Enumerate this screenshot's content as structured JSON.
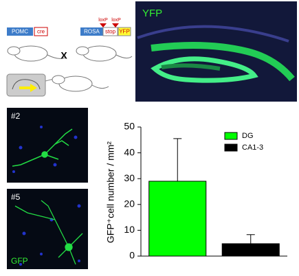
{
  "chart_data": {
    "type": "bar",
    "ylabel": "GFP⁺cell number / mm²",
    "series": [
      {
        "name": "DG",
        "color": "#00ff00",
        "values": [
          29
        ],
        "errors": [
          16.5
        ]
      },
      {
        "name": "CA1-3",
        "color": "#000000",
        "values": [
          4.8
        ],
        "errors": [
          3.5
        ]
      }
    ],
    "ylim": [
      0,
      50
    ],
    "yticks": [
      0,
      10,
      20,
      30,
      40,
      50
    ],
    "legend": "upper right"
  },
  "schematic": {
    "pomc": "POMC",
    "cre": "cre",
    "rosa": "ROSA",
    "loxp_1": "loxP",
    "loxp_2": "loxP",
    "stop": "stop",
    "yfp": "YFP",
    "cross": "X"
  },
  "images": {
    "hippocampus_label": "YFP",
    "cell_1_label": "#2",
    "cell_2_label": "#5",
    "stain_label": "GFP"
  }
}
